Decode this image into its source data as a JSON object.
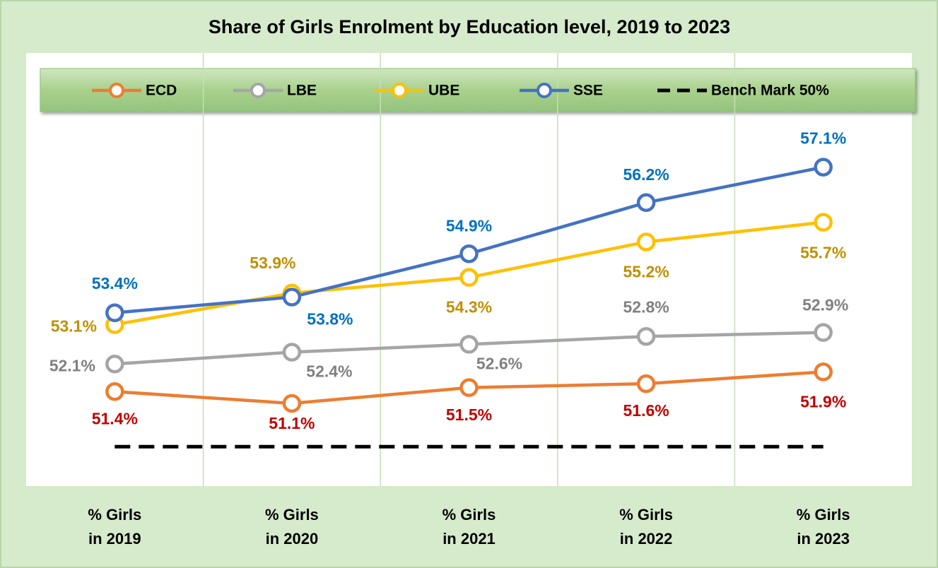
{
  "chart_data": {
    "type": "line",
    "title": "Share of Girls Enrolment by Education level, 2019 to 2023",
    "categories": [
      "% Girls\nin 2019",
      "% Girls\nin 2020",
      "% Girls\nin 2021",
      "% Girls\nin 2022",
      "% Girls\nin 2023"
    ],
    "ylim": [
      49,
      60
    ],
    "grid": true,
    "legend": "top",
    "series": [
      {
        "name": "ECD",
        "color": "#ed7d31",
        "label_color": "#c00000",
        "values": [
          51.4,
          51.1,
          51.5,
          51.6,
          51.9
        ],
        "value_labels": [
          "51.4%",
          "51.1%",
          "51.5%",
          "51.6%",
          "51.9%"
        ]
      },
      {
        "name": "LBE",
        "color": "#a5a5a5",
        "label_color": "#808080",
        "values": [
          52.1,
          52.4,
          52.6,
          52.8,
          52.9
        ],
        "value_labels": [
          "52.1%",
          "52.4%",
          "52.6%",
          "52.8%",
          "52.9%"
        ]
      },
      {
        "name": "UBE",
        "color": "#ffc000",
        "label_color": "#bf9000",
        "values": [
          53.1,
          53.9,
          54.3,
          55.2,
          55.7
        ],
        "value_labels": [
          "53.1%",
          "53.9%",
          "54.3%",
          "55.2%",
          "55.7%"
        ]
      },
      {
        "name": "SSE",
        "color": "#4472c4",
        "label_color": "#0070c0",
        "values": [
          53.4,
          53.8,
          54.9,
          56.2,
          57.1
        ],
        "value_labels": [
          "53.4%",
          "53.8%",
          "54.9%",
          "56.2%",
          "57.1%"
        ]
      },
      {
        "name": "Bench Mark 50%",
        "color": "#000000",
        "dashed": true,
        "values": [
          50,
          50,
          50,
          50,
          50
        ]
      }
    ]
  }
}
